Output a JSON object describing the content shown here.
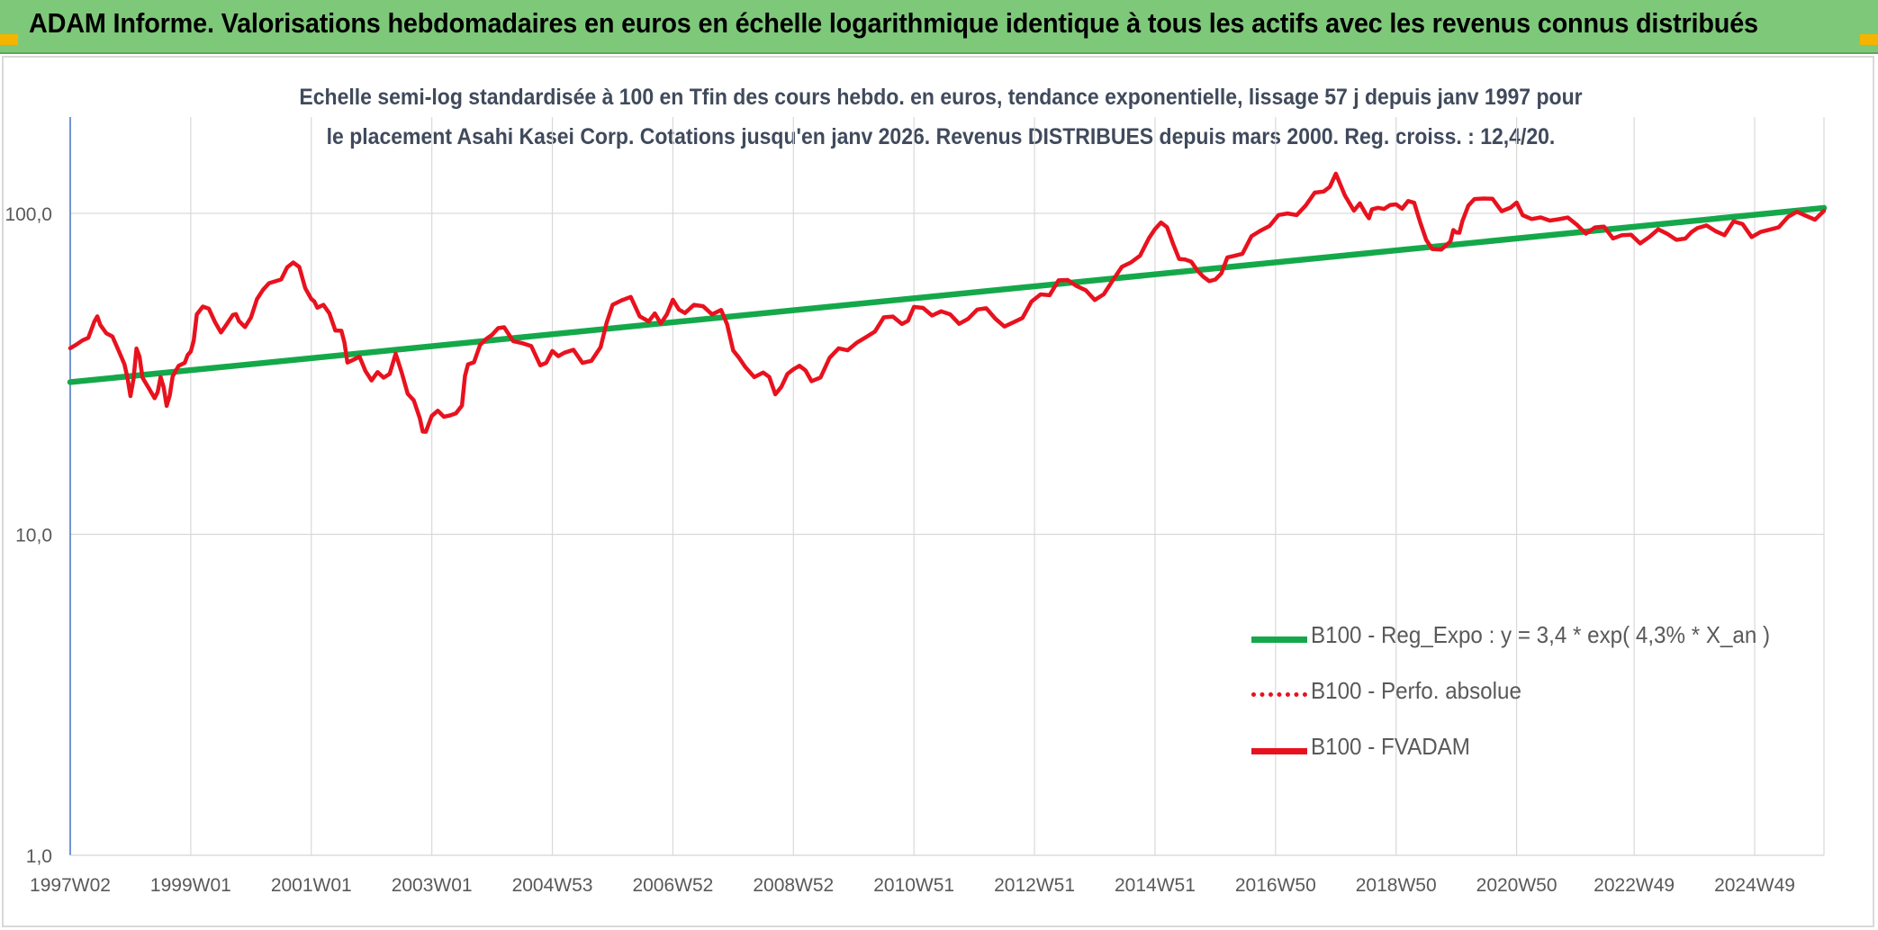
{
  "header": {
    "title": "ADAM Informe. Valorisations hebdomadaires en euros en échelle logarithmique identique à tous les actifs avec les revenus connus distribués"
  },
  "colors": {
    "header_bg": "#7ec87a",
    "corner_accent": "#f4b400",
    "fvadam": "#e8121e",
    "perfo_absolue": "#e8121e",
    "reg_expo": "#14a84a",
    "title_text": "#404a5c",
    "axis_text": "#595959"
  },
  "chart_data": {
    "type": "line",
    "title": "Echelle semi-log standardisée à 100 en Tfin des cours hebdo. en euros, tendance exponentielle, lissage 57 j depuis janv 1997 pour le placement Asahi Kasei Corp. Cotations jusqu'en janv 2026. Revenus DISTRIBUES depuis mars 2000. Reg. croiss. : 12,4/20.",
    "xlabel": "",
    "ylabel": "",
    "y_scale": "log",
    "ylim": [
      1,
      200
    ],
    "xlim": [
      1997.0,
      2026.1
    ],
    "y_ticks": [
      1,
      10,
      100
    ],
    "y_tick_labels": [
      "1,0",
      "10,0",
      "100,0"
    ],
    "x_ticks": [
      1997.0,
      1999.0,
      2001.0,
      2003.0,
      2005.0,
      2007.0,
      2009.0,
      2011.0,
      2013.0,
      2015.0,
      2017.0,
      2019.0,
      2021.0,
      2022.95,
      2024.95
    ],
    "x_tick_labels": [
      "1997W02",
      "1999W01",
      "2001W01",
      "2003W01",
      "2004W53",
      "2006W52",
      "2008W52",
      "2010W51",
      "2012W51",
      "2014W51",
      "2016W50",
      "2018W50",
      "2020W50",
      "2022W49",
      "2024W49"
    ],
    "grid": "vertical and horizontal",
    "legend_position": "bottom-right",
    "series": [
      {
        "name": "B100 - Reg_Expo : y = 3,4 * exp( 4,3% *  X_an )",
        "style": "solid-thick",
        "color": "#14a84a",
        "x": [
          1997.0,
          2026.1
        ],
        "y": [
          29.8,
          104
        ]
      },
      {
        "name": "B100 - Perfo. absolue",
        "style": "dotted",
        "color": "#e8121e",
        "x": [],
        "y": []
      },
      {
        "name": "B100 - FVADAM",
        "style": "solid",
        "color": "#e8121e",
        "x": [
          1997.0,
          1997.2,
          1997.4,
          1997.5,
          1997.7,
          1997.9,
          1998.0,
          1998.1,
          1998.2,
          1998.4,
          1998.5,
          1998.6,
          1998.7,
          1998.9,
          1999.0,
          1999.1,
          1999.3,
          1999.5,
          1999.7,
          1999.8,
          2000.0,
          2000.2,
          2000.4,
          2000.6,
          2000.8,
          2001.0,
          2001.1,
          2001.3,
          2001.5,
          2001.6,
          2001.8,
          2002.0,
          2002.2,
          2002.4,
          2002.6,
          2002.8,
          2002.9,
          2003.1,
          2003.3,
          2003.5,
          2003.6,
          2003.8,
          2004.0,
          2004.2,
          2004.5,
          2004.8,
          2005.0,
          2005.2,
          2005.5,
          2005.8,
          2006.0,
          2006.3,
          2006.6,
          2006.8,
          2007.0,
          2007.2,
          2007.5,
          2007.8,
          2008.0,
          2008.2,
          2008.5,
          2008.7,
          2008.9,
          2009.1,
          2009.3,
          2009.6,
          2009.9,
          2010.2,
          2010.5,
          2010.8,
          2011.0,
          2011.3,
          2011.6,
          2011.9,
          2012.2,
          2012.5,
          2012.8,
          2013.1,
          2013.4,
          2013.7,
          2014.0,
          2014.3,
          2014.6,
          2014.9,
          2015.1,
          2015.3,
          2015.5,
          2015.7,
          2015.9,
          2016.1,
          2016.3,
          2016.6,
          2016.9,
          2017.2,
          2017.5,
          2017.8,
          2018.0,
          2018.3,
          2018.5,
          2018.6,
          2018.8,
          2019.0,
          2019.2,
          2019.4,
          2019.6,
          2019.9,
          2020.0,
          2020.1,
          2020.3,
          2020.6,
          2020.9,
          2021.1,
          2021.4,
          2021.7,
          2022.0,
          2022.3,
          2022.6,
          2022.9,
          2023.2,
          2023.5,
          2023.8,
          2024.0,
          2024.3,
          2024.6,
          2024.9,
          2025.2,
          2025.5,
          2025.8,
          2026.1
        ],
        "y": [
          38,
          40,
          45,
          46,
          42,
          33,
          27,
          38,
          31,
          27,
          30,
          25,
          32,
          34,
          37,
          48,
          50,
          44,
          48,
          45,
          48,
          58,
          62,
          68,
          66,
          55,
          52,
          48,
          43,
          34,
          36,
          31,
          30,
          36,
          28,
          23,
          21,
          24,
          23,
          26,
          34,
          38,
          42,
          44,
          40,
          34,
          36,
          37,
          35,
          38,
          52,
          54,
          46,
          47,
          53,
          48,
          52,
          50,
          38,
          33,
          31,
          28,
          32,
          33,
          30,
          35,
          38,
          42,
          46,
          45,
          52,
          48,
          49,
          46,
          50,
          46,
          47,
          55,
          62,
          59,
          55,
          62,
          68,
          85,
          95,
          80,
          72,
          65,
          62,
          67,
          72,
          84,
          92,
          100,
          108,
          115,
          130,
          105,
          100,
          102,
          103,
          105,
          112,
          95,
          75,
          82,
          88,
          95,
          112,
          108,
          104,
          102,
          96,
          95,
          92,
          90,
          86,
          85,
          82,
          88,
          84,
          90,
          88,
          92,
          86,
          91,
          95,
          98,
          102
        ]
      }
    ]
  }
}
